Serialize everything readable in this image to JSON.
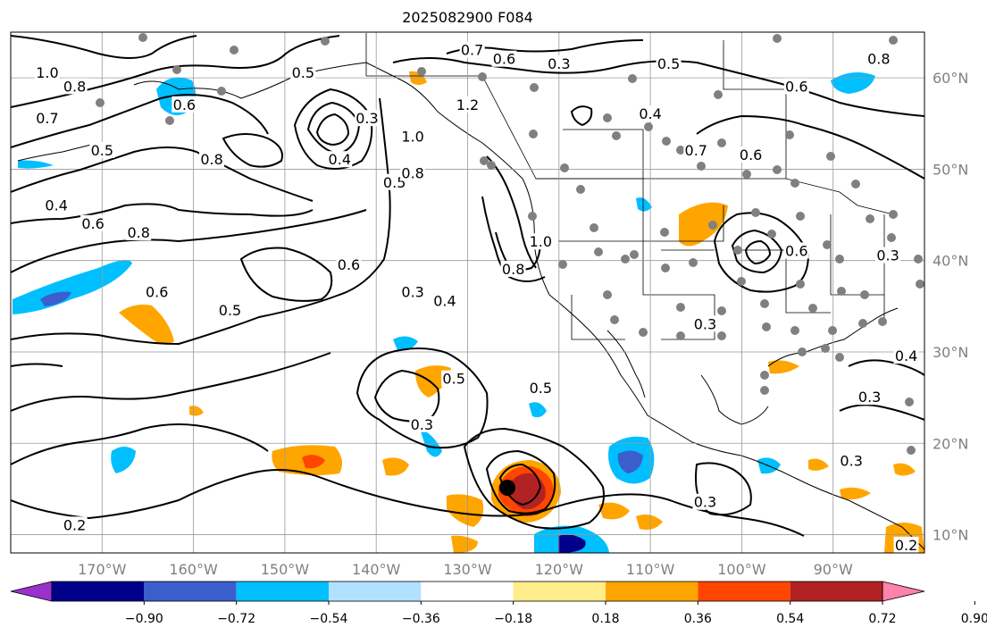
{
  "title": "2025082900 F084",
  "map": {
    "type": "geographic-map",
    "projection": "PlateCarree",
    "extent": {
      "lon_min": -180,
      "lon_max": -80,
      "lat_min": 8,
      "lat_max": 65
    },
    "grid": true,
    "lon_ticks": [
      {
        "lon": -170,
        "label": "170°W"
      },
      {
        "lon": -160,
        "label": "160°W"
      },
      {
        "lon": -150,
        "label": "150°W"
      },
      {
        "lon": -140,
        "label": "140°W"
      },
      {
        "lon": -130,
        "label": "130°W"
      },
      {
        "lon": -120,
        "label": "120°W"
      },
      {
        "lon": -110,
        "label": "110°W"
      },
      {
        "lon": -100,
        "label": "100°W"
      },
      {
        "lon": -90,
        "label": "90°W"
      }
    ],
    "lat_ticks": [
      {
        "lat": 10,
        "label": "10°N"
      },
      {
        "lat": 20,
        "label": "20°N"
      },
      {
        "lat": 30,
        "label": "30°N"
      },
      {
        "lat": 40,
        "label": "40°N"
      },
      {
        "lat": 50,
        "label": "50°N"
      },
      {
        "lat": 60,
        "label": "60°N"
      }
    ],
    "contour_labels": [
      {
        "lon": -176,
        "lat": 60.5,
        "text": "1.0"
      },
      {
        "lon": -173,
        "lat": 59,
        "text": "0.8"
      },
      {
        "lon": -176,
        "lat": 55.5,
        "text": "0.7"
      },
      {
        "lon": -170,
        "lat": 52,
        "text": "0.5"
      },
      {
        "lon": -175,
        "lat": 46,
        "text": "0.4"
      },
      {
        "lon": -171,
        "lat": 44,
        "text": "0.6"
      },
      {
        "lon": -161,
        "lat": 57,
        "text": "0.6"
      },
      {
        "lon": -158,
        "lat": 51,
        "text": "0.8"
      },
      {
        "lon": -166,
        "lat": 43,
        "text": "0.8"
      },
      {
        "lon": -148,
        "lat": 60.5,
        "text": "0.5"
      },
      {
        "lon": -141,
        "lat": 55.5,
        "text": "0.3"
      },
      {
        "lon": -144,
        "lat": 51,
        "text": "0.4"
      },
      {
        "lon": -138,
        "lat": 48.5,
        "text": "0.5"
      },
      {
        "lon": -136,
        "lat": 53.5,
        "text": "1.0"
      },
      {
        "lon": -136,
        "lat": 49.5,
        "text": "0.8"
      },
      {
        "lon": -130,
        "lat": 57,
        "text": "1.2"
      },
      {
        "lon": -129.5,
        "lat": 63,
        "text": "0.7"
      },
      {
        "lon": -126,
        "lat": 62,
        "text": "0.6"
      },
      {
        "lon": -120,
        "lat": 61.5,
        "text": "0.3"
      },
      {
        "lon": -108,
        "lat": 61.5,
        "text": "0.5"
      },
      {
        "lon": -110,
        "lat": 56,
        "text": "0.4"
      },
      {
        "lon": -94,
        "lat": 59,
        "text": "0.6"
      },
      {
        "lon": -85,
        "lat": 62,
        "text": "0.8"
      },
      {
        "lon": -105,
        "lat": 52,
        "text": "0.7"
      },
      {
        "lon": -99,
        "lat": 51.5,
        "text": "0.6"
      },
      {
        "lon": -122,
        "lat": 42,
        "text": "1.0"
      },
      {
        "lon": -125,
        "lat": 39,
        "text": "0.8"
      },
      {
        "lon": -94,
        "lat": 41,
        "text": "0.6"
      },
      {
        "lon": -84,
        "lat": 40.5,
        "text": "0.3"
      },
      {
        "lon": -164,
        "lat": 36.5,
        "text": "0.6"
      },
      {
        "lon": -156,
        "lat": 34.5,
        "text": "0.5"
      },
      {
        "lon": -143,
        "lat": 39.5,
        "text": "0.6"
      },
      {
        "lon": -136,
        "lat": 36.5,
        "text": "0.3"
      },
      {
        "lon": -132.5,
        "lat": 35.5,
        "text": "0.4"
      },
      {
        "lon": -131.5,
        "lat": 27,
        "text": "0.5"
      },
      {
        "lon": -122,
        "lat": 26,
        "text": "0.5"
      },
      {
        "lon": -135,
        "lat": 22,
        "text": "0.3"
      },
      {
        "lon": -104,
        "lat": 33,
        "text": "0.3"
      },
      {
        "lon": -86,
        "lat": 25,
        "text": "0.3"
      },
      {
        "lon": -82,
        "lat": 29.5,
        "text": "0.4"
      },
      {
        "lon": -88,
        "lat": 18,
        "text": "0.3"
      },
      {
        "lon": -104,
        "lat": 13.5,
        "text": "0.3"
      },
      {
        "lon": -173,
        "lat": 11,
        "text": "0.2"
      },
      {
        "lon": -82,
        "lat": 8.8,
        "text": "0.2"
      }
    ],
    "colorbar": {
      "ticks": [
        "−0.90",
        "−0.72",
        "−0.54",
        "−0.36",
        "−0.18",
        "0.18",
        "0.36",
        "0.54",
        "0.72",
        "0.90"
      ],
      "colors": [
        "#9932cc",
        "#00008b",
        "#3a5fcd",
        "#00bfff",
        "#b0e2ff",
        "#ffffff",
        "#ffec8b",
        "#ffa500",
        "#ff4500",
        "#b22222",
        "#ff82ab"
      ]
    }
  }
}
